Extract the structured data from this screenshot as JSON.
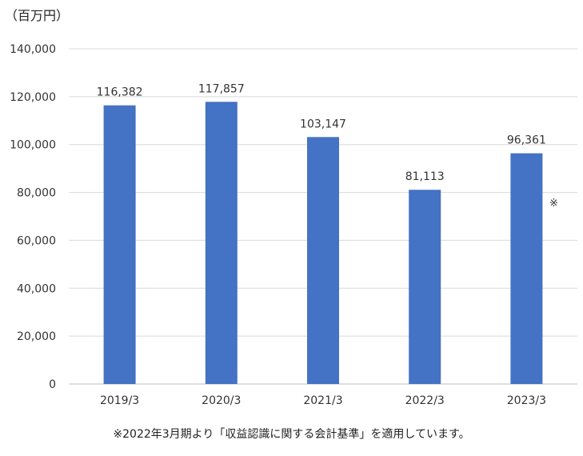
{
  "unit_label": "（百万円）",
  "footnote": "※2022年3月期より「収益認識に関する会計基準」を適用しています。",
  "chart_data": {
    "type": "bar",
    "categories": [
      "2019/3",
      "2020/3",
      "2021/3",
      "2022/3",
      "2023/3"
    ],
    "values": [
      116382,
      117857,
      103147,
      81113,
      96361
    ],
    "data_labels": [
      "116,382",
      "117,857",
      "103,147",
      "81,113",
      "96,361"
    ],
    "bar_marks": [
      "",
      "",
      "",
      "",
      "※"
    ],
    "y_ticks": [
      "0",
      "20,000",
      "40,000",
      "60,000",
      "80,000",
      "100,000",
      "120,000",
      "140,000"
    ],
    "ylim": [
      0,
      140000
    ],
    "grid": true,
    "bar_color": "#4472C4",
    "title": "",
    "xlabel": "",
    "ylabel": ""
  }
}
